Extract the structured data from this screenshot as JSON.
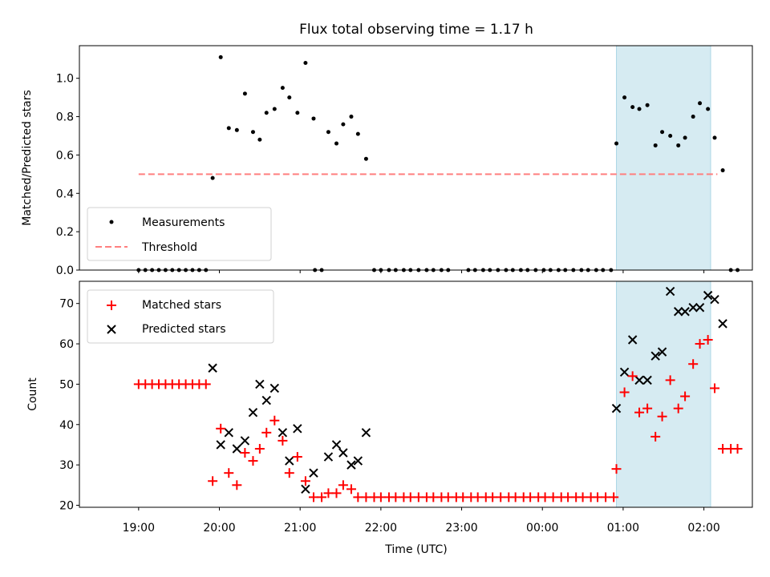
{
  "colors": {
    "measurements": "#000000",
    "threshold": "#ff7f7f",
    "matched": "#ff0000",
    "predicted": "#000000",
    "highlight": "#add8e6"
  },
  "chart_data": [
    {
      "type": "scatter",
      "title": "Flux total observing time = 1.17 h",
      "xlabel": "",
      "ylabel": "Matched/Predicted stars",
      "x_unit": "hours since 19:00 UTC (axis shows clock time)",
      "ylim": [
        0,
        1.17
      ],
      "yticks": [
        "0.0",
        "0.2",
        "0.4",
        "0.6",
        "0.8",
        "1.0"
      ],
      "highlight_span": [
        "00:55",
        "02:05"
      ],
      "legend": {
        "placement": "lower-left",
        "entries": [
          "Measurements",
          "Threshold"
        ]
      },
      "threshold": {
        "name": "Threshold",
        "value": 0.5,
        "x_range": [
          "19:00",
          "02:10"
        ]
      },
      "series": [
        {
          "name": "Measurements",
          "points": [
            [
              "19:00",
              0
            ],
            [
              "19:05",
              0
            ],
            [
              "19:10",
              0
            ],
            [
              "19:15",
              0
            ],
            [
              "19:20",
              0
            ],
            [
              "19:25",
              0
            ],
            [
              "19:30",
              0
            ],
            [
              "19:35",
              0
            ],
            [
              "19:40",
              0
            ],
            [
              "19:45",
              0
            ],
            [
              "19:50",
              0
            ],
            [
              "19:55",
              0.48
            ],
            [
              "20:01",
              1.11
            ],
            [
              "20:07",
              0.74
            ],
            [
              "20:13",
              0.73
            ],
            [
              "20:19",
              0.92
            ],
            [
              "20:25",
              0.72
            ],
            [
              "20:30",
              0.68
            ],
            [
              "20:35",
              0.82
            ],
            [
              "20:41",
              0.84
            ],
            [
              "20:47",
              0.95
            ],
            [
              "20:52",
              0.9
            ],
            [
              "20:58",
              0.82
            ],
            [
              "21:04",
              1.08
            ],
            [
              "21:10",
              0.79
            ],
            [
              "21:11",
              0
            ],
            [
              "21:16",
              0
            ],
            [
              "21:21",
              0.72
            ],
            [
              "21:27",
              0.66
            ],
            [
              "21:32",
              0.76
            ],
            [
              "21:38",
              0.8
            ],
            [
              "21:43",
              0.71
            ],
            [
              "21:49",
              0.58
            ],
            [
              "21:55",
              0
            ],
            [
              "22:00",
              0
            ],
            [
              "22:06",
              0
            ],
            [
              "22:11",
              0
            ],
            [
              "22:17",
              0
            ],
            [
              "22:22",
              0
            ],
            [
              "22:28",
              0
            ],
            [
              "22:34",
              0
            ],
            [
              "22:39",
              0
            ],
            [
              "22:45",
              0
            ],
            [
              "22:50",
              0
            ],
            [
              "23:05",
              0
            ],
            [
              "23:10",
              0
            ],
            [
              "23:16",
              0
            ],
            [
              "23:21",
              0
            ],
            [
              "23:27",
              0
            ],
            [
              "23:33",
              0
            ],
            [
              "23:38",
              0
            ],
            [
              "23:44",
              0
            ],
            [
              "23:49",
              0
            ],
            [
              "23:55",
              0
            ],
            [
              "00:01",
              0
            ],
            [
              "00:06",
              0
            ],
            [
              "00:12",
              0
            ],
            [
              "00:17",
              0
            ],
            [
              "00:23",
              0
            ],
            [
              "00:29",
              0
            ],
            [
              "00:34",
              0
            ],
            [
              "00:40",
              0
            ],
            [
              "00:45",
              0
            ],
            [
              "00:51",
              0
            ],
            [
              "00:55",
              0.66
            ],
            [
              "01:01",
              0.9
            ],
            [
              "01:07",
              0.85
            ],
            [
              "01:12",
              0.84
            ],
            [
              "01:18",
              0.86
            ],
            [
              "01:24",
              0.65
            ],
            [
              "01:29",
              0.72
            ],
            [
              "01:35",
              0.7
            ],
            [
              "01:41",
              0.65
            ],
            [
              "01:46",
              0.69
            ],
            [
              "01:52",
              0.8
            ],
            [
              "01:57",
              0.87
            ],
            [
              "02:03",
              0.84
            ],
            [
              "02:08",
              0.69
            ],
            [
              "02:14",
              0.52
            ],
            [
              "02:20",
              0
            ],
            [
              "02:25",
              0
            ]
          ]
        }
      ]
    },
    {
      "type": "scatter",
      "title": "",
      "xlabel": "Time (UTC)",
      "ylabel": "Count",
      "x_unit": "hours since 19:00 UTC (axis shows clock time)",
      "ylim": [
        19.5,
        75.5
      ],
      "xlim": [
        "18:16",
        "02:36"
      ],
      "xticks": [
        "19:00",
        "20:00",
        "21:00",
        "22:00",
        "23:00",
        "00:00",
        "01:00",
        "02:00"
      ],
      "yticks": [
        "20",
        "30",
        "40",
        "50",
        "60",
        "70"
      ],
      "highlight_span": [
        "00:55",
        "02:05"
      ],
      "legend": {
        "placement": "upper-left",
        "entries": [
          "Matched stars",
          "Predicted stars"
        ]
      },
      "series": [
        {
          "name": "Matched stars",
          "marker": "plus",
          "points": [
            [
              "19:00",
              50
            ],
            [
              "19:05",
              50
            ],
            [
              "19:10",
              50
            ],
            [
              "19:15",
              50
            ],
            [
              "19:20",
              50
            ],
            [
              "19:25",
              50
            ],
            [
              "19:30",
              50
            ],
            [
              "19:35",
              50
            ],
            [
              "19:40",
              50
            ],
            [
              "19:45",
              50
            ],
            [
              "19:50",
              50
            ],
            [
              "19:55",
              26
            ],
            [
              "20:01",
              39
            ],
            [
              "20:07",
              28
            ],
            [
              "20:13",
              25
            ],
            [
              "20:19",
              33
            ],
            [
              "20:25",
              31
            ],
            [
              "20:30",
              34
            ],
            [
              "20:35",
              38
            ],
            [
              "20:41",
              41
            ],
            [
              "20:47",
              36
            ],
            [
              "20:52",
              28
            ],
            [
              "20:58",
              32
            ],
            [
              "21:04",
              26
            ],
            [
              "21:10",
              22
            ],
            [
              "21:16",
              22
            ],
            [
              "21:21",
              23
            ],
            [
              "21:27",
              23
            ],
            [
              "21:32",
              25
            ],
            [
              "21:38",
              24
            ],
            [
              "21:43",
              22
            ],
            [
              "21:49",
              22
            ],
            [
              "21:55",
              22
            ],
            [
              "22:00",
              22
            ],
            [
              "22:06",
              22
            ],
            [
              "22:11",
              22
            ],
            [
              "22:17",
              22
            ],
            [
              "22:22",
              22
            ],
            [
              "22:28",
              22
            ],
            [
              "22:34",
              22
            ],
            [
              "22:39",
              22
            ],
            [
              "22:45",
              22
            ],
            [
              "22:50",
              22
            ],
            [
              "22:56",
              22
            ],
            [
              "23:01",
              22
            ],
            [
              "23:07",
              22
            ],
            [
              "23:12",
              22
            ],
            [
              "23:18",
              22
            ],
            [
              "23:23",
              22
            ],
            [
              "23:29",
              22
            ],
            [
              "23:35",
              22
            ],
            [
              "23:40",
              22
            ],
            [
              "23:46",
              22
            ],
            [
              "23:51",
              22
            ],
            [
              "23:57",
              22
            ],
            [
              "00:02",
              22
            ],
            [
              "00:08",
              22
            ],
            [
              "00:14",
              22
            ],
            [
              "00:19",
              22
            ],
            [
              "00:25",
              22
            ],
            [
              "00:30",
              22
            ],
            [
              "00:36",
              22
            ],
            [
              "00:41",
              22
            ],
            [
              "00:47",
              22
            ],
            [
              "00:53",
              22
            ],
            [
              "00:55",
              29
            ],
            [
              "01:01",
              48
            ],
            [
              "01:07",
              52
            ],
            [
              "01:12",
              43
            ],
            [
              "01:18",
              44
            ],
            [
              "01:24",
              37
            ],
            [
              "01:29",
              42
            ],
            [
              "01:35",
              51
            ],
            [
              "01:41",
              44
            ],
            [
              "01:46",
              47
            ],
            [
              "01:52",
              55
            ],
            [
              "01:57",
              60
            ],
            [
              "02:03",
              61
            ],
            [
              "02:08",
              49
            ],
            [
              "02:14",
              34
            ],
            [
              "02:20",
              34
            ],
            [
              "02:25",
              34
            ]
          ]
        },
        {
          "name": "Predicted stars",
          "marker": "x",
          "points": [
            [
              "19:55",
              54
            ],
            [
              "20:01",
              35
            ],
            [
              "20:07",
              38
            ],
            [
              "20:13",
              34
            ],
            [
              "20:19",
              36
            ],
            [
              "20:25",
              43
            ],
            [
              "20:30",
              50
            ],
            [
              "20:35",
              46
            ],
            [
              "20:41",
              49
            ],
            [
              "20:47",
              38
            ],
            [
              "20:52",
              31
            ],
            [
              "20:58",
              39
            ],
            [
              "21:04",
              24
            ],
            [
              "21:10",
              28
            ],
            [
              "21:21",
              32
            ],
            [
              "21:27",
              35
            ],
            [
              "21:32",
              33
            ],
            [
              "21:38",
              30
            ],
            [
              "21:43",
              31
            ],
            [
              "21:49",
              38
            ],
            [
              "00:55",
              44
            ],
            [
              "01:01",
              53
            ],
            [
              "01:07",
              61
            ],
            [
              "01:12",
              51
            ],
            [
              "01:18",
              51
            ],
            [
              "01:24",
              57
            ],
            [
              "01:29",
              58
            ],
            [
              "01:35",
              73
            ],
            [
              "01:41",
              68
            ],
            [
              "01:46",
              68
            ],
            [
              "01:52",
              69
            ],
            [
              "01:57",
              69
            ],
            [
              "02:03",
              72
            ],
            [
              "02:08",
              71
            ],
            [
              "02:14",
              65
            ]
          ]
        }
      ]
    }
  ]
}
